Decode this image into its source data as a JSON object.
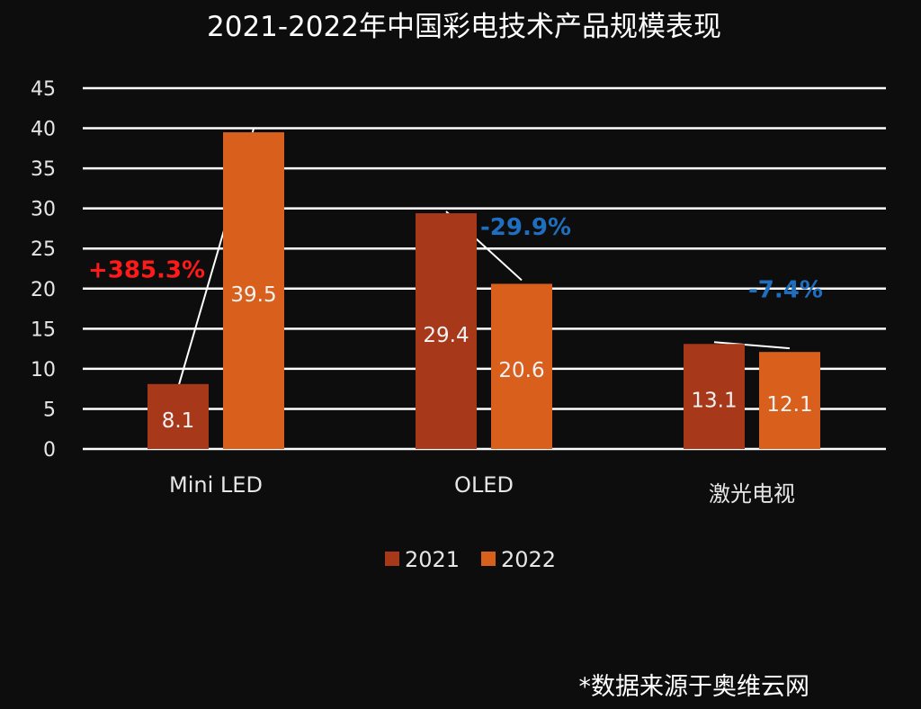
{
  "title": "2021-2022年中国彩电技术产品规模表现",
  "source_note": "*数据来源于奥维云网",
  "colors": {
    "background": "#0d0d0d",
    "series_2021": "#a8381a",
    "series_2022": "#d95f1c",
    "grid": "#ffffff",
    "positive_change": "#ff1a1a",
    "negative_change": "#1f6fc0",
    "connector": "#ffffff"
  },
  "chart_data": {
    "type": "bar",
    "title": "2021-2022年中国彩电技术产品规模表现",
    "categories": [
      "Mini LED",
      "OLED",
      "激光电视"
    ],
    "series": [
      {
        "name": "2021",
        "values": [
          8.1,
          29.4,
          13.1
        ]
      },
      {
        "name": "2022",
        "values": [
          39.5,
          20.6,
          12.1
        ]
      }
    ],
    "data_labels": [
      [
        "8.1",
        "29.4",
        "13.1"
      ],
      [
        "39.5",
        "20.6",
        "12.1"
      ]
    ],
    "annotations": [
      "+385.3%",
      "-29.9%",
      "-7.4%"
    ],
    "annotation_colors": [
      "positive_change",
      "negative_change",
      "negative_change"
    ],
    "yticks": [
      "0",
      "5",
      "10",
      "15",
      "20",
      "25",
      "30",
      "35",
      "40",
      "45"
    ],
    "ylim": [
      0,
      45
    ],
    "grid": true,
    "legend_position": "bottom"
  }
}
